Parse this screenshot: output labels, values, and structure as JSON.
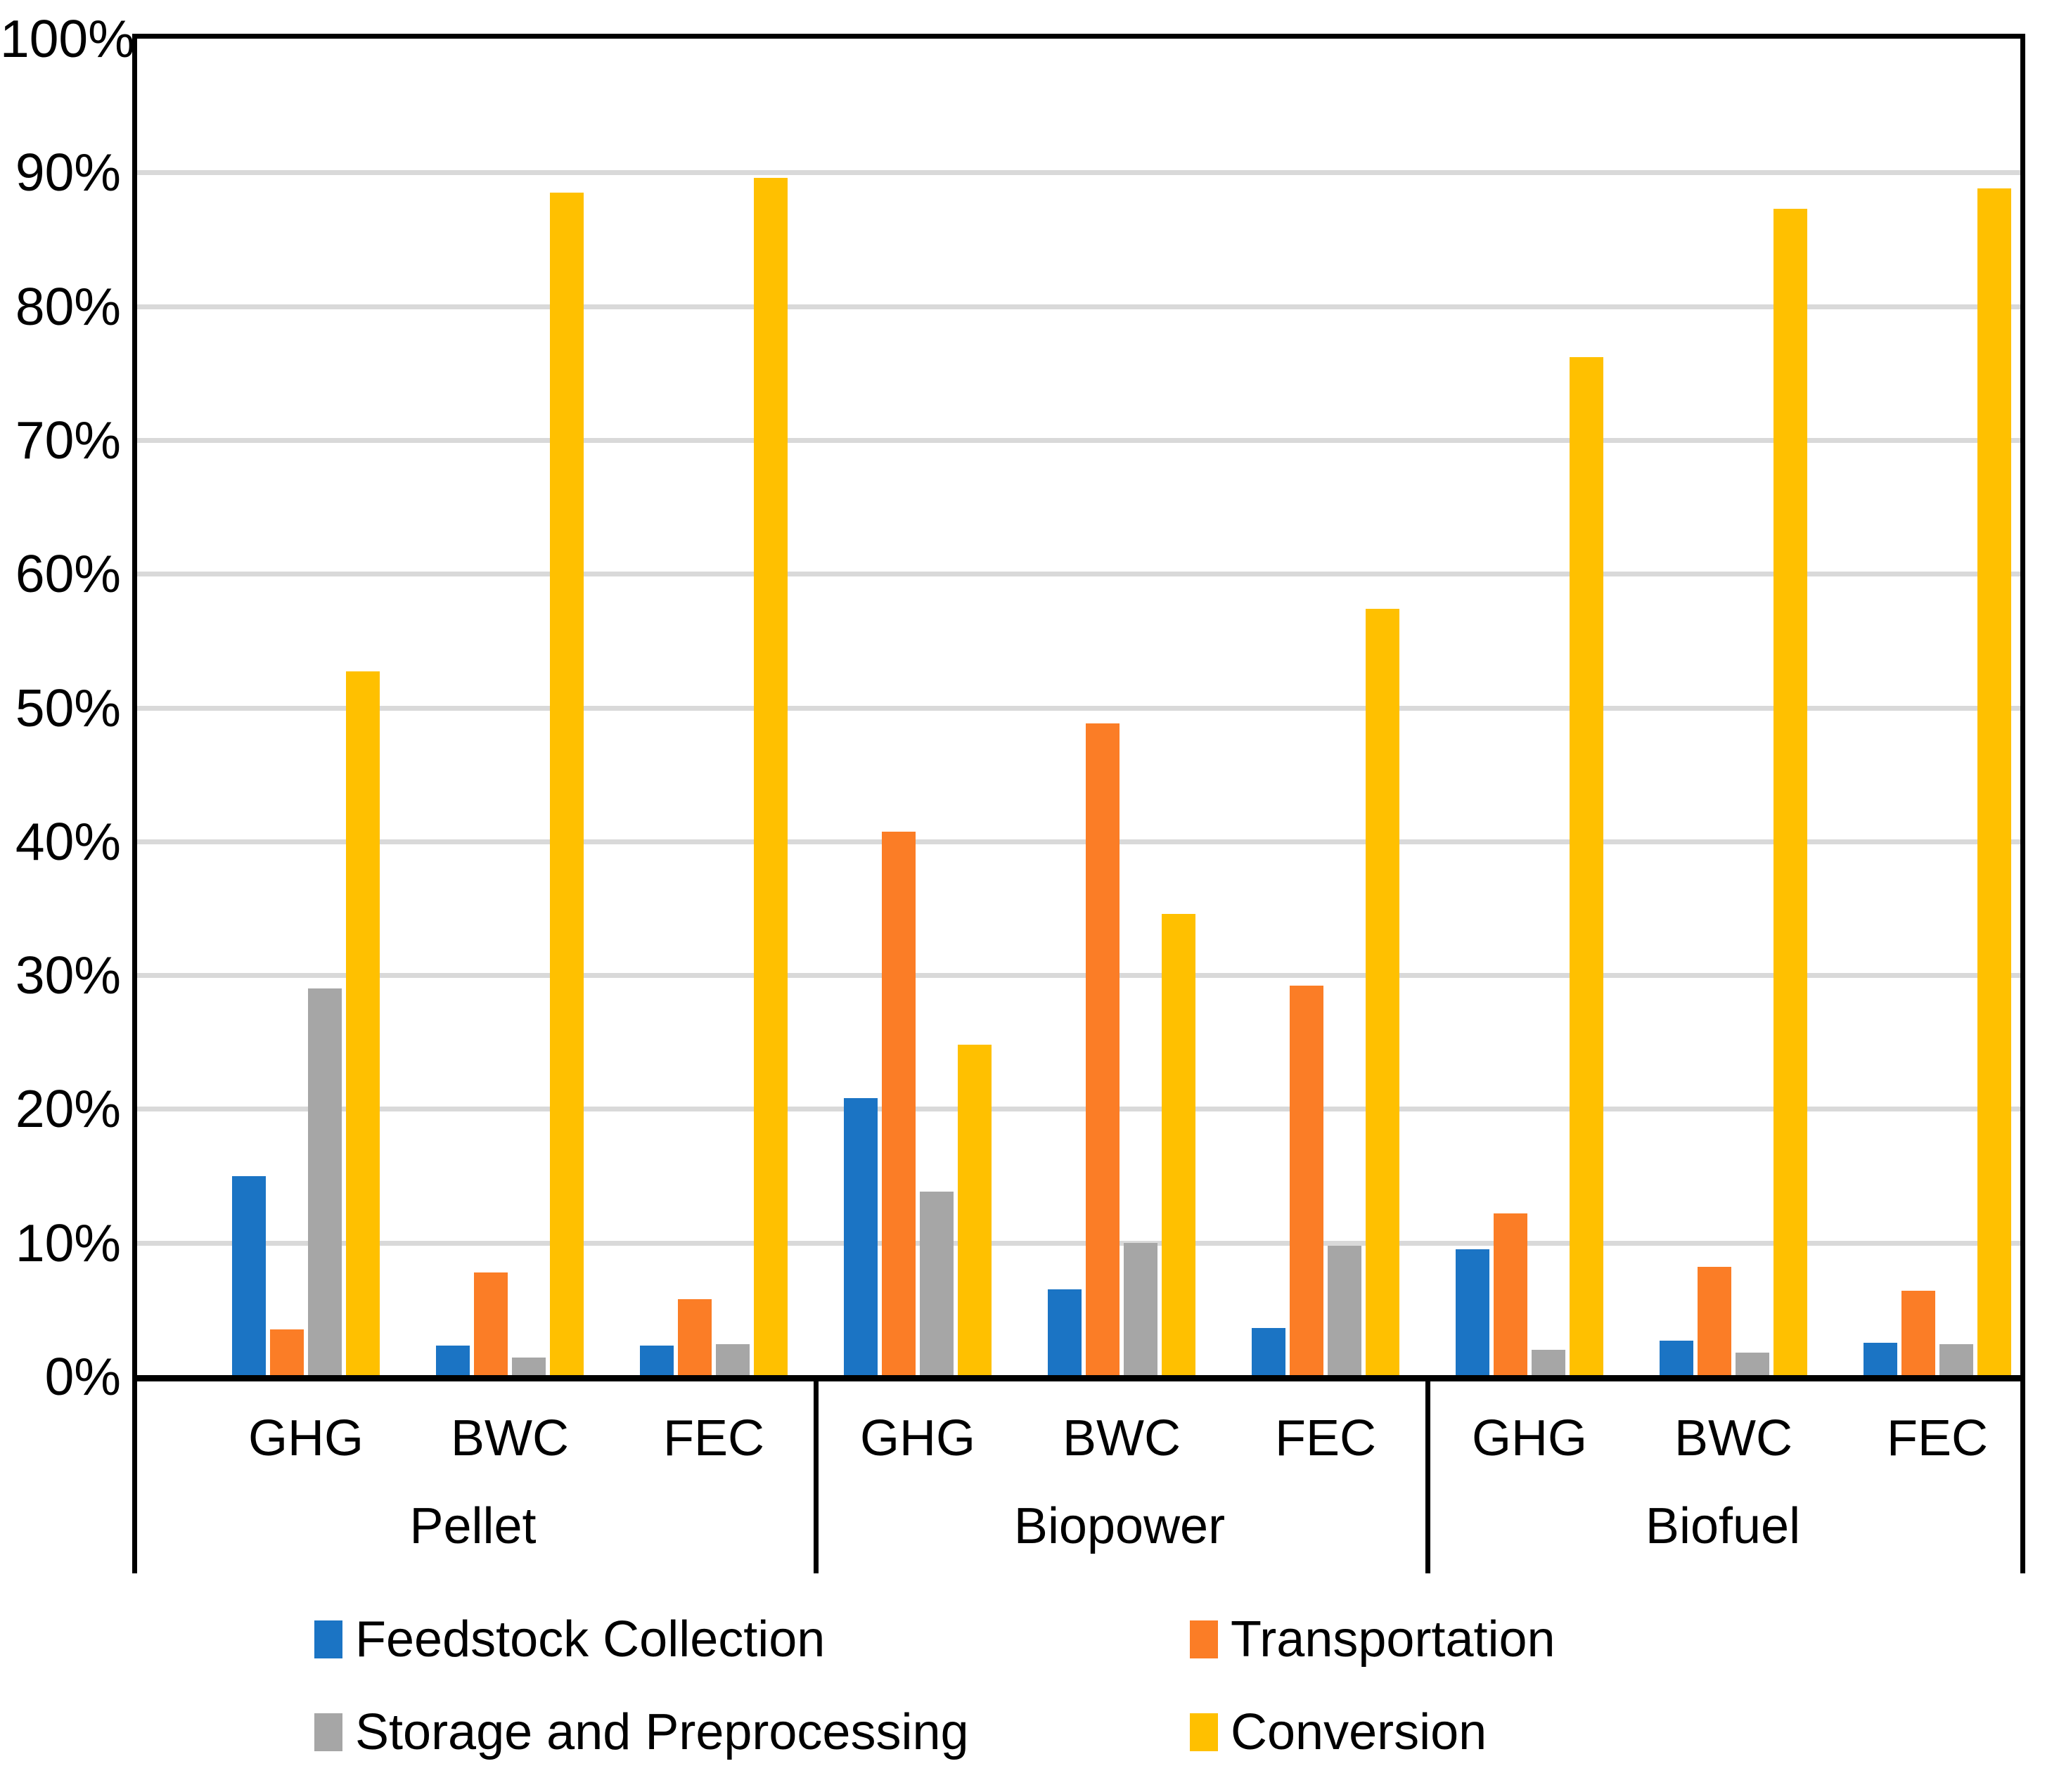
{
  "chart_data": {
    "type": "bar",
    "title": "",
    "xlabel": "",
    "ylabel": "",
    "ylim": [
      0,
      100
    ],
    "grid": true,
    "legend_position": "bottom",
    "y_tick_labels": [
      "0%",
      "10%",
      "20%",
      "30%",
      "40%",
      "50%",
      "60%",
      "70%",
      "80%",
      "90%",
      "100%"
    ],
    "groups": [
      "Pellet",
      "Biopower",
      "Biofuel"
    ],
    "categories_per_group": [
      "GHG",
      "BWC",
      "FEC"
    ],
    "category_slots": [
      "Pellet-GHG",
      "Pellet-BWC",
      "Pellet-FEC",
      "Biopower-GHG",
      "Biopower-BWC",
      "Biopower-FEC",
      "Biofuel-GHG",
      "Biofuel-BWC",
      "Biofuel-FEC"
    ],
    "series": [
      {
        "name": "Feedstock Collection",
        "color": "#1B74C4",
        "values": [
          15.0,
          2.3,
          2.3,
          20.8,
          6.5,
          3.6,
          9.5,
          2.7,
          2.5
        ]
      },
      {
        "name": "Transportation",
        "color": "#FB7D26",
        "values": [
          3.5,
          7.8,
          5.8,
          40.7,
          48.8,
          29.2,
          12.2,
          8.2,
          6.4
        ]
      },
      {
        "name": "Storage and Preprocessing",
        "color": "#A6A6A6",
        "values": [
          29.0,
          1.4,
          2.4,
          13.8,
          10.0,
          9.8,
          2.0,
          1.8,
          2.4
        ]
      },
      {
        "name": "Conversion",
        "color": "#FFC000",
        "values": [
          52.7,
          88.5,
          89.6,
          24.8,
          34.6,
          57.4,
          76.2,
          87.3,
          88.8
        ]
      }
    ],
    "colors": {
      "axis": "#000000",
      "gridline": "#D9D9D9",
      "background": "#FFFFFF"
    }
  },
  "legend": {
    "items": [
      {
        "label": "Feedstock Collection"
      },
      {
        "label": "Transportation"
      },
      {
        "label": "Storage and Preprocessing"
      },
      {
        "label": "Conversion"
      }
    ]
  }
}
